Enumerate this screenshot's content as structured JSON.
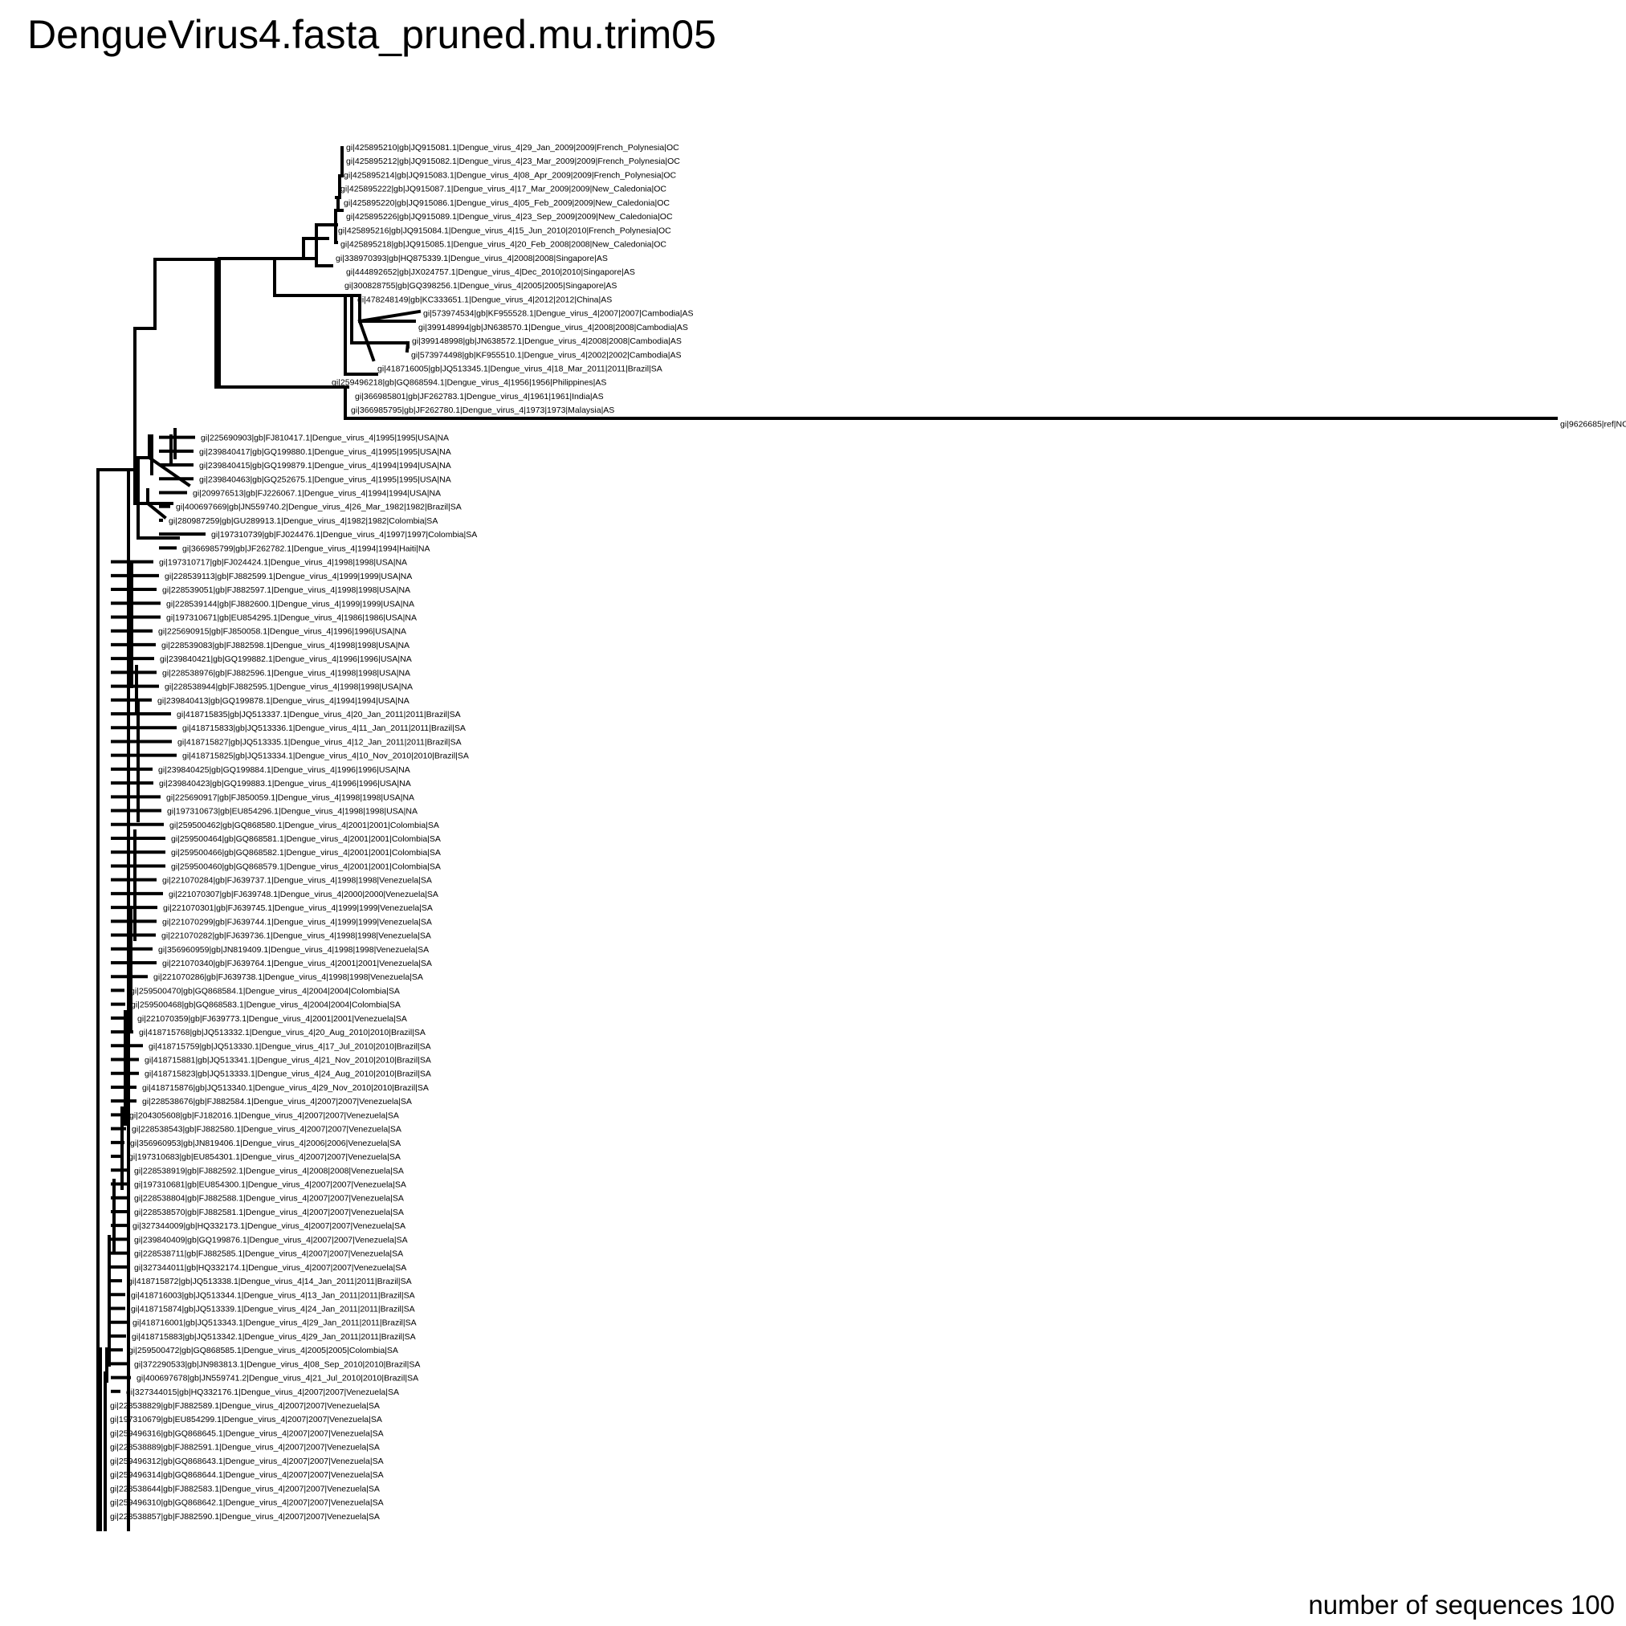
{
  "title": "DengueVirus4.fasta_pruned.mu.trim05",
  "footer": "number of sequences 100",
  "tips": [
    "gi|425895210|gb|JQ915081.1|Dengue_virus_4|29_Jan_2009|2009|French_Polynesia|OC",
    "gi|425895212|gb|JQ915082.1|Dengue_virus_4|23_Mar_2009|2009|French_Polynesia|OC",
    "gi|425895214|gb|JQ915083.1|Dengue_virus_4|08_Apr_2009|2009|French_Polynesia|OC",
    "gi|425895222|gb|JQ915087.1|Dengue_virus_4|17_Mar_2009|2009|New_Caledonia|OC",
    "gi|425895220|gb|JQ915086.1|Dengue_virus_4|05_Feb_2009|2009|New_Caledonia|OC",
    "gi|425895226|gb|JQ915089.1|Dengue_virus_4|23_Sep_2009|2009|New_Caledonia|OC",
    "gi|425895216|gb|JQ915084.1|Dengue_virus_4|15_Jun_2010|2010|French_Polynesia|OC",
    "gi|425895218|gb|JQ915085.1|Dengue_virus_4|20_Feb_2008|2008|New_Caledonia|OC",
    "gi|338970393|gb|HQ875339.1|Dengue_virus_4|2008|2008|Singapore|AS",
    "gi|444892652|gb|JX024757.1|Dengue_virus_4|Dec_2010|2010|Singapore|AS",
    "gi|300828755|gb|GQ398256.1|Dengue_virus_4|2005|2005|Singapore|AS",
    "gi|478248149|gb|KC333651.1|Dengue_virus_4|2012|2012|China|AS",
    "gi|573974534|gb|KF955528.1|Dengue_virus_4|2007|2007|Cambodia|AS",
    "gi|399148994|gb|JN638570.1|Dengue_virus_4|2008|2008|Cambodia|AS",
    "gi|399148998|gb|JN638572.1|Dengue_virus_4|2008|2008|Cambodia|AS",
    "gi|573974498|gb|KF955510.1|Dengue_virus_4|2002|2002|Cambodia|AS",
    "gi|418716005|gb|JQ513345.1|Dengue_virus_4|18_Mar_2011|2011|Brazil|SA",
    "gi|259496218|gb|GQ868594.1|Dengue_virus_4|1956|1956|Philippines|AS",
    "gi|366985801|gb|JF262783.1|Dengue_virus_4|1961|1961|India|AS",
    "gi|366985795|gb|JF262780.1|Dengue_virus_4|1973|1973|Malaysia|AS",
    "gi|9626685|ref|NC",
    "gi|225690903|gb|FJ810417.1|Dengue_virus_4|1995|1995|USA|NA",
    "gi|239840417|gb|GQ199880.1|Dengue_virus_4|1995|1995|USA|NA",
    "gi|239840415|gb|GQ199879.1|Dengue_virus_4|1994|1994|USA|NA",
    "gi|239840463|gb|GQ252675.1|Dengue_virus_4|1995|1995|USA|NA",
    "gi|209976513|gb|FJ226067.1|Dengue_virus_4|1994|1994|USA|NA",
    "gi|400697669|gb|JN559740.2|Dengue_virus_4|26_Mar_1982|1982|Brazil|SA",
    "gi|280987259|gb|GU289913.1|Dengue_virus_4|1982|1982|Colombia|SA",
    "gi|197310739|gb|FJ024476.1|Dengue_virus_4|1997|1997|Colombia|SA",
    "gi|366985799|gb|JF262782.1|Dengue_virus_4|1994|1994|Haiti|NA",
    "gi|197310717|gb|FJ024424.1|Dengue_virus_4|1998|1998|USA|NA",
    "gi|228539113|gb|FJ882599.1|Dengue_virus_4|1999|1999|USA|NA",
    "gi|228539051|gb|FJ882597.1|Dengue_virus_4|1998|1998|USA|NA",
    "gi|228539144|gb|FJ882600.1|Dengue_virus_4|1999|1999|USA|NA",
    "gi|197310671|gb|EU854295.1|Dengue_virus_4|1986|1986|USA|NA",
    "gi|225690915|gb|FJ850058.1|Dengue_virus_4|1996|1996|USA|NA",
    "gi|228539083|gb|FJ882598.1|Dengue_virus_4|1998|1998|USA|NA",
    "gi|239840421|gb|GQ199882.1|Dengue_virus_4|1996|1996|USA|NA",
    "gi|228538976|gb|FJ882596.1|Dengue_virus_4|1998|1998|USA|NA",
    "gi|228538944|gb|FJ882595.1|Dengue_virus_4|1998|1998|USA|NA",
    "gi|239840413|gb|GQ199878.1|Dengue_virus_4|1994|1994|USA|NA",
    "gi|418715835|gb|JQ513337.1|Dengue_virus_4|20_Jan_2011|2011|Brazil|SA",
    "gi|418715833|gb|JQ513336.1|Dengue_virus_4|11_Jan_2011|2011|Brazil|SA",
    "gi|418715827|gb|JQ513335.1|Dengue_virus_4|12_Jan_2011|2011|Brazil|SA",
    "gi|418715825|gb|JQ513334.1|Dengue_virus_4|10_Nov_2010|2010|Brazil|SA",
    "gi|239840425|gb|GQ199884.1|Dengue_virus_4|1996|1996|USA|NA",
    "gi|239840423|gb|GQ199883.1|Dengue_virus_4|1996|1996|USA|NA",
    "gi|225690917|gb|FJ850059.1|Dengue_virus_4|1998|1998|USA|NA",
    "gi|197310673|gb|EU854296.1|Dengue_virus_4|1998|1998|USA|NA",
    "gi|259500462|gb|GQ868580.1|Dengue_virus_4|2001|2001|Colombia|SA",
    "gi|259500464|gb|GQ868581.1|Dengue_virus_4|2001|2001|Colombia|SA",
    "gi|259500466|gb|GQ868582.1|Dengue_virus_4|2001|2001|Colombia|SA",
    "gi|259500460|gb|GQ868579.1|Dengue_virus_4|2001|2001|Colombia|SA",
    "gi|221070284|gb|FJ639737.1|Dengue_virus_4|1998|1998|Venezuela|SA",
    "gi|221070307|gb|FJ639748.1|Dengue_virus_4|2000|2000|Venezuela|SA",
    "gi|221070301|gb|FJ639745.1|Dengue_virus_4|1999|1999|Venezuela|SA",
    "gi|221070299|gb|FJ639744.1|Dengue_virus_4|1999|1999|Venezuela|SA",
    "gi|221070282|gb|FJ639736.1|Dengue_virus_4|1998|1998|Venezuela|SA",
    "gi|356960959|gb|JN819409.1|Dengue_virus_4|1998|1998|Venezuela|SA",
    "gi|221070340|gb|FJ639764.1|Dengue_virus_4|2001|2001|Venezuela|SA",
    "gi|221070286|gb|FJ639738.1|Dengue_virus_4|1998|1998|Venezuela|SA",
    "gi|259500470|gb|GQ868584.1|Dengue_virus_4|2004|2004|Colombia|SA",
    "gi|259500468|gb|GQ868583.1|Dengue_virus_4|2004|2004|Colombia|SA",
    "gi|221070359|gb|FJ639773.1|Dengue_virus_4|2001|2001|Venezuela|SA",
    "gi|418715768|gb|JQ513332.1|Dengue_virus_4|20_Aug_2010|2010|Brazil|SA",
    "gi|418715759|gb|JQ513330.1|Dengue_virus_4|17_Jul_2010|2010|Brazil|SA",
    "gi|418715881|gb|JQ513341.1|Dengue_virus_4|21_Nov_2010|2010|Brazil|SA",
    "gi|418715823|gb|JQ513333.1|Dengue_virus_4|24_Aug_2010|2010|Brazil|SA",
    "gi|418715876|gb|JQ513340.1|Dengue_virus_4|29_Nov_2010|2010|Brazil|SA",
    "gi|228538676|gb|FJ882584.1|Dengue_virus_4|2007|2007|Venezuela|SA",
    "gi|204305608|gb|FJ182016.1|Dengue_virus_4|2007|2007|Venezuela|SA",
    "gi|228538543|gb|FJ882580.1|Dengue_virus_4|2007|2007|Venezuela|SA",
    "gi|356960953|gb|JN819406.1|Dengue_virus_4|2006|2006|Venezuela|SA",
    "gi|197310683|gb|EU854301.1|Dengue_virus_4|2007|2007|Venezuela|SA",
    "gi|228538919|gb|FJ882592.1|Dengue_virus_4|2008|2008|Venezuela|SA",
    "gi|197310681|gb|EU854300.1|Dengue_virus_4|2007|2007|Venezuela|SA",
    "gi|228538804|gb|FJ882588.1|Dengue_virus_4|2007|2007|Venezuela|SA",
    "gi|228538570|gb|FJ882581.1|Dengue_virus_4|2007|2007|Venezuela|SA",
    "gi|327344009|gb|HQ332173.1|Dengue_virus_4|2007|2007|Venezuela|SA",
    "gi|239840409|gb|GQ199876.1|Dengue_virus_4|2007|2007|Venezuela|SA",
    "gi|228538711|gb|FJ882585.1|Dengue_virus_4|2007|2007|Venezuela|SA",
    "gi|327344011|gb|HQ332174.1|Dengue_virus_4|2007|2007|Venezuela|SA",
    "gi|418715872|gb|JQ513338.1|Dengue_virus_4|14_Jan_2011|2011|Brazil|SA",
    "gi|418716003|gb|JQ513344.1|Dengue_virus_4|13_Jan_2011|2011|Brazil|SA",
    "gi|418715874|gb|JQ513339.1|Dengue_virus_4|24_Jan_2011|2011|Brazil|SA",
    "gi|418716001|gb|JQ513343.1|Dengue_virus_4|29_Jan_2011|2011|Brazil|SA",
    "gi|418715883|gb|JQ513342.1|Dengue_virus_4|29_Jan_2011|2011|Brazil|SA",
    "gi|259500472|gb|GQ868585.1|Dengue_virus_4|2005|2005|Colombia|SA",
    "gi|372290533|gb|JN983813.1|Dengue_virus_4|08_Sep_2010|2010|Brazil|SA",
    "gi|400697678|gb|JN559741.2|Dengue_virus_4|21_Jul_2010|2010|Brazil|SA",
    "gi|327344015|gb|HQ332176.1|Dengue_virus_4|2007|2007|Venezuela|SA",
    "gi|228538829|gb|FJ882589.1|Dengue_virus_4|2007|2007|Venezuela|SA",
    "gi|197310679|gb|EU854299.1|Dengue_virus_4|2007|2007|Venezuela|SA",
    "gi|259496316|gb|GQ868645.1|Dengue_virus_4|2007|2007|Venezuela|SA",
    "gi|228538889|gb|FJ882591.1|Dengue_virus_4|2007|2007|Venezuela|SA",
    "gi|259496312|gb|GQ868643.1|Dengue_virus_4|2007|2007|Venezuela|SA",
    "gi|259496314|gb|GQ868644.1|Dengue_virus_4|2007|2007|Venezuela|SA",
    "gi|228538644|gb|FJ882583.1|Dengue_virus_4|2007|2007|Venezuela|SA",
    "gi|259496310|gb|GQ868642.1|Dengue_virus_4|2007|2007|Venezuela|SA",
    "gi|228538857|gb|FJ882590.1|Dengue_virus_4|2007|2007|Venezuela|SA"
  ]
}
